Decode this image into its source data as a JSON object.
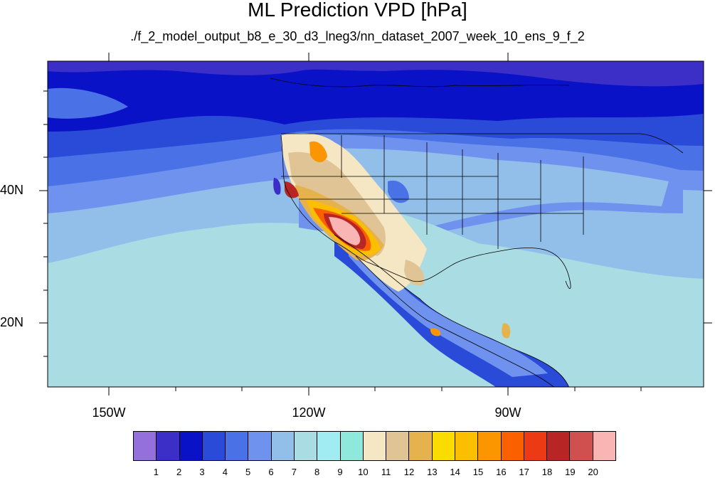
{
  "title": "ML Prediction VPD [hPa]",
  "subtitle": "./f_2_model_output_b8_e_30_d3_lneg3/nn_dataset_2007_week_10_ens_9_f_2",
  "longitude_labels": [
    "150W",
    "120W",
    "90W"
  ],
  "latitude_labels": [
    "40N",
    "20N"
  ],
  "colorbar": {
    "colors": [
      "#9370db",
      "#3c2fc8",
      "#0a12c8",
      "#2a4ad8",
      "#4a72e6",
      "#6f92ee",
      "#91bfe9",
      "#a9dde3",
      "#a0ecf2",
      "#8fe8dc",
      "#f5e6c4",
      "#e1c495",
      "#e6b24e",
      "#fbdc00",
      "#fbbf00",
      "#fb9600",
      "#fb6000",
      "#ec3a14",
      "#b82525",
      "#d05050",
      "#f9b4b4"
    ],
    "labels": [
      "1",
      "2",
      "3",
      "4",
      "5",
      "6",
      "7",
      "8",
      "9",
      "10",
      "11",
      "12",
      "13",
      "14",
      "15",
      "16",
      "17",
      "18",
      "19",
      "20"
    ]
  }
}
